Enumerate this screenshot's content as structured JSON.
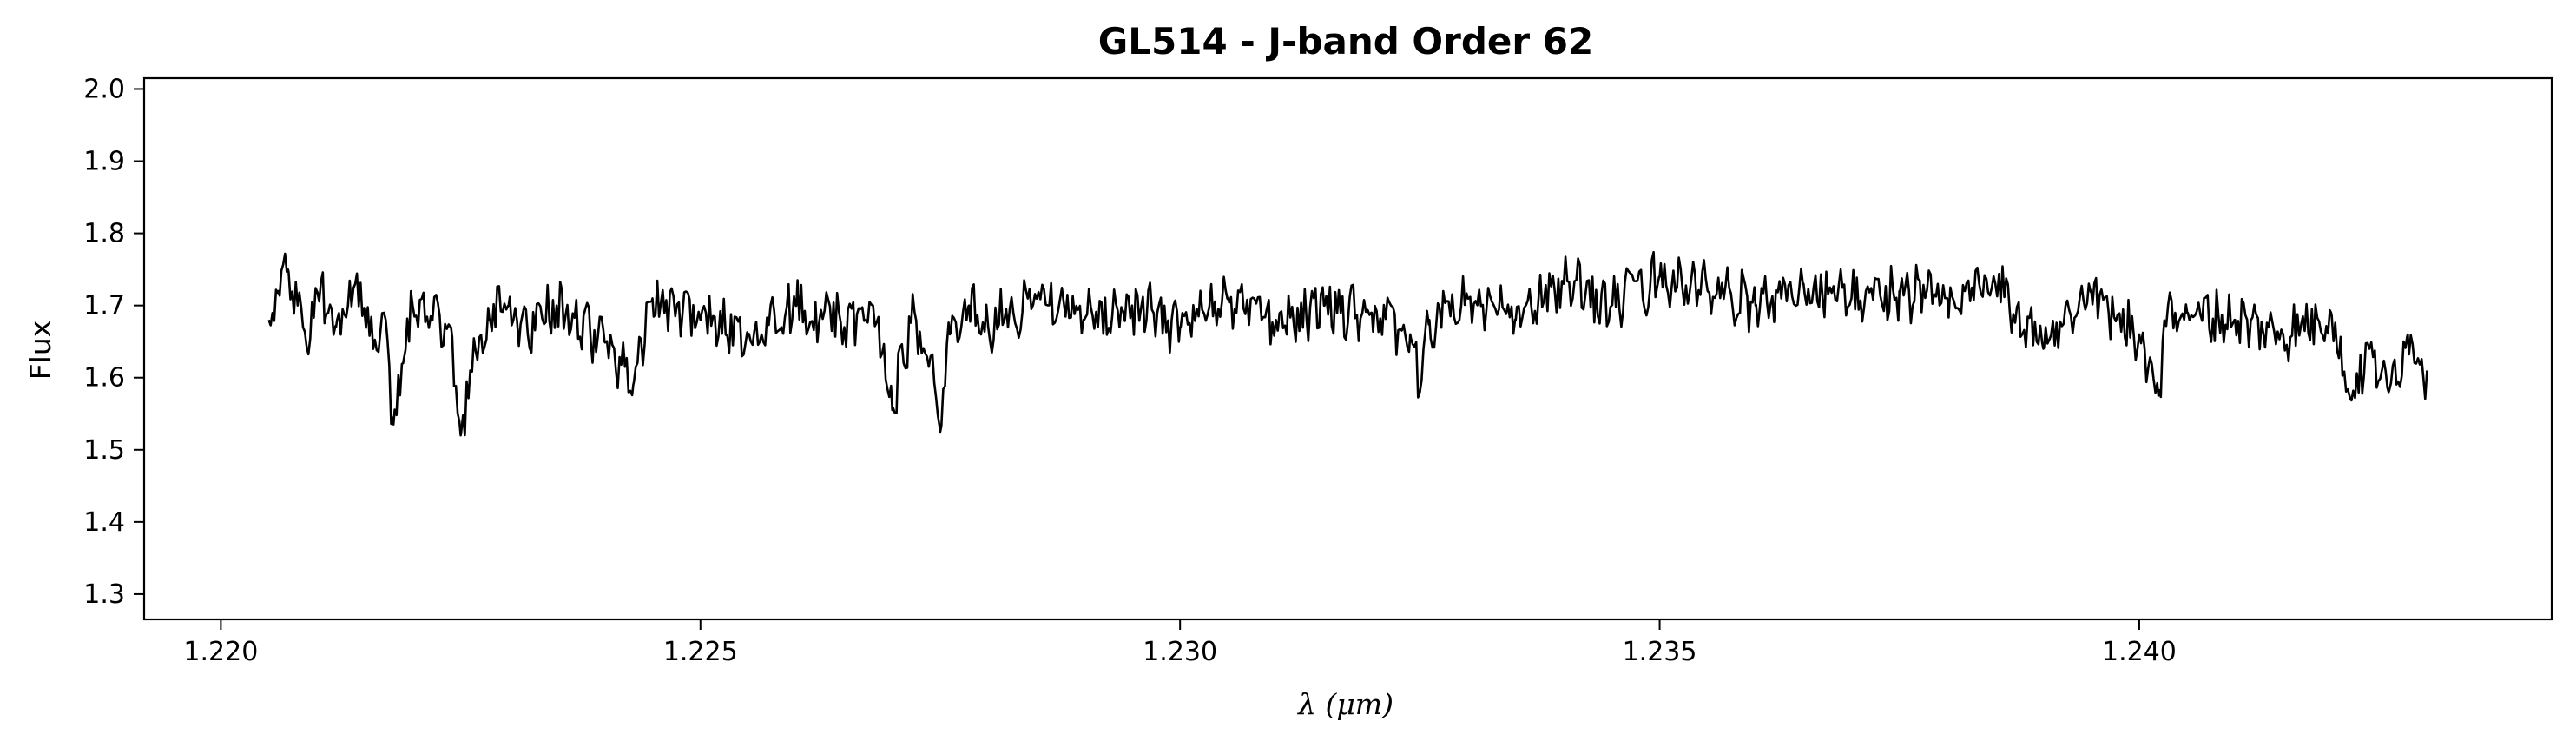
{
  "chart_data": {
    "type": "line",
    "title": "GL514 - J-band Order 62",
    "xlabel": "λ (μm)",
    "ylabel": "Flux",
    "xlim": [
      1.2192,
      1.2443
    ],
    "ylim": [
      1.265,
      2.015
    ],
    "xticks": [
      1.22,
      1.225,
      1.23,
      1.235,
      1.24
    ],
    "xtick_labels": [
      "1.220",
      "1.225",
      "1.230",
      "1.235",
      "1.240"
    ],
    "yticks": [
      1.3,
      1.4,
      1.5,
      1.6,
      1.7,
      1.8,
      1.9,
      2.0
    ],
    "ytick_labels": [
      "1.3",
      "1.4",
      "1.5",
      "1.6",
      "1.7",
      "1.8",
      "1.9",
      "2.0"
    ],
    "grid": false,
    "line_color": "#000000",
    "series": [
      {
        "x_start": 1.2205,
        "x_end": 1.243,
        "x": [
          1.2205,
          1.2206,
          1.2207,
          1.2208,
          1.2209,
          1.221,
          1.2212,
          1.2214,
          1.2216,
          1.2217,
          1.2218,
          1.2219,
          1.222,
          1.2222,
          1.2224,
          1.2225,
          1.2226,
          1.2228,
          1.223,
          1.2232,
          1.2235,
          1.224,
          1.2243,
          1.2245,
          1.225,
          1.2255,
          1.226,
          1.2265,
          1.2268,
          1.227,
          1.2272,
          1.2274,
          1.2275,
          1.2276,
          1.2278,
          1.228,
          1.2285,
          1.229,
          1.2295,
          1.23,
          1.2305,
          1.231,
          1.2315,
          1.232,
          1.2324,
          1.2325,
          1.2326,
          1.233,
          1.2335,
          1.234,
          1.2345,
          1.235,
          1.2355,
          1.236,
          1.2365,
          1.237,
          1.2375,
          1.238,
          1.2385,
          1.239,
          1.2395,
          1.24,
          1.2402,
          1.2403,
          1.2405,
          1.241,
          1.2415,
          1.242,
          1.2422,
          1.2424,
          1.2426,
          1.2428,
          1.243
        ],
        "y": [
          1.68,
          1.72,
          1.75,
          1.7,
          1.64,
          1.72,
          1.67,
          1.73,
          1.65,
          1.69,
          1.535,
          1.62,
          1.7,
          1.68,
          1.67,
          1.52,
          1.61,
          1.68,
          1.7,
          1.66,
          1.7,
          1.65,
          1.59,
          1.71,
          1.68,
          1.66,
          1.7,
          1.67,
          1.7,
          1.555,
          1.68,
          1.63,
          1.525,
          1.66,
          1.7,
          1.67,
          1.71,
          1.68,
          1.7,
          1.67,
          1.71,
          1.68,
          1.7,
          1.69,
          1.66,
          1.58,
          1.68,
          1.71,
          1.68,
          1.73,
          1.7,
          1.74,
          1.72,
          1.7,
          1.73,
          1.71,
          1.72,
          1.71,
          1.73,
          1.64,
          1.72,
          1.66,
          1.575,
          1.7,
          1.69,
          1.68,
          1.66,
          1.69,
          1.57,
          1.64,
          1.58,
          1.66,
          1.61
        ]
      }
    ]
  }
}
